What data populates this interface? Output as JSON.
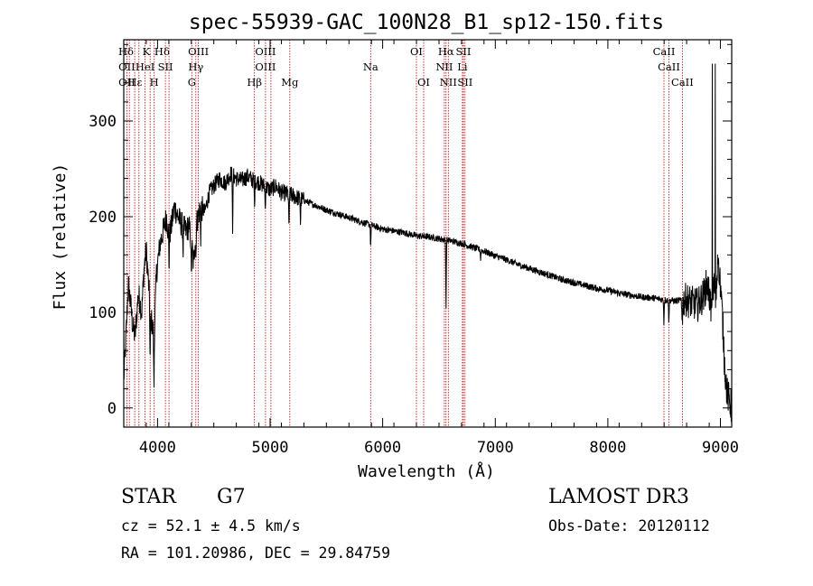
{
  "chart_data": {
    "type": "line",
    "title": "spec-55939-GAC_100N28_B1_sp12-150.fits",
    "xlabel": "Wavelength (Å)",
    "ylabel": "Flux (relative)",
    "xlim": [
      3700,
      9100
    ],
    "ylim": [
      -20,
      385
    ],
    "xticks": [
      4000,
      5000,
      6000,
      7000,
      8000,
      9000
    ],
    "yticks": [
      0,
      100,
      200,
      300
    ],
    "grid": false,
    "spectrum_anchors": [
      [
        3700,
        30
      ],
      [
        3720,
        75
      ],
      [
        3740,
        130
      ],
      [
        3760,
        110
      ],
      [
        3780,
        85
      ],
      [
        3800,
        75
      ],
      [
        3830,
        120
      ],
      [
        3860,
        100
      ],
      [
        3880,
        145
      ],
      [
        3900,
        165
      ],
      [
        3920,
        130
      ],
      [
        3940,
        95
      ],
      [
        3970,
        75
      ],
      [
        3990,
        140
      ],
      [
        4020,
        170
      ],
      [
        4050,
        185
      ],
      [
        4080,
        200
      ],
      [
        4100,
        178
      ],
      [
        4120,
        188
      ],
      [
        4150,
        210
      ],
      [
        4200,
        195
      ],
      [
        4250,
        185
      ],
      [
        4280,
        190
      ],
      [
        4300,
        175
      ],
      [
        4320,
        150
      ],
      [
        4340,
        190
      ],
      [
        4380,
        210
      ],
      [
        4420,
        205
      ],
      [
        4460,
        225
      ],
      [
        4500,
        232
      ],
      [
        4550,
        240
      ],
      [
        4600,
        235
      ],
      [
        4650,
        245
      ],
      [
        4700,
        240
      ],
      [
        4750,
        238
      ],
      [
        4800,
        242
      ],
      [
        4850,
        238
      ],
      [
        4900,
        236
      ],
      [
        4950,
        232
      ],
      [
        5000,
        228
      ],
      [
        5050,
        232
      ],
      [
        5100,
        225
      ],
      [
        5150,
        224
      ],
      [
        5200,
        222
      ],
      [
        5300,
        217
      ],
      [
        5400,
        212
      ],
      [
        5500,
        207
      ],
      [
        5600,
        203
      ],
      [
        5700,
        199
      ],
      [
        5800,
        195
      ],
      [
        5900,
        191
      ],
      [
        6000,
        187
      ],
      [
        6100,
        185
      ],
      [
        6200,
        183
      ],
      [
        6300,
        180
      ],
      [
        6400,
        179
      ],
      [
        6500,
        177
      ],
      [
        6600,
        175
      ],
      [
        6700,
        172
      ],
      [
        6800,
        168
      ],
      [
        6900,
        164
      ],
      [
        7000,
        159
      ],
      [
        7100,
        155
      ],
      [
        7200,
        150
      ],
      [
        7300,
        146
      ],
      [
        7400,
        142
      ],
      [
        7500,
        138
      ],
      [
        7600,
        134
      ],
      [
        7700,
        131
      ],
      [
        7800,
        128
      ],
      [
        7900,
        125
      ],
      [
        8000,
        123
      ],
      [
        8100,
        120
      ],
      [
        8200,
        118
      ],
      [
        8300,
        116
      ],
      [
        8400,
        115
      ],
      [
        8500,
        113
      ],
      [
        8600,
        112
      ],
      [
        8700,
        113
      ],
      [
        8750,
        110
      ],
      [
        8800,
        108
      ],
      [
        8850,
        118
      ],
      [
        8880,
        130
      ],
      [
        8900,
        120
      ],
      [
        8920,
        95
      ],
      [
        8940,
        135
      ],
      [
        8960,
        105
      ],
      [
        8980,
        160
      ],
      [
        9000,
        130
      ],
      [
        9020,
        90
      ],
      [
        9040,
        40
      ],
      [
        9060,
        15
      ],
      [
        9100,
        0
      ]
    ],
    "absorption_features": [
      [
        3934,
        60
      ],
      [
        3968,
        55
      ],
      [
        4102,
        30
      ],
      [
        4227,
        25
      ],
      [
        4300,
        40
      ],
      [
        4340,
        35
      ],
      [
        4384,
        30
      ],
      [
        4668,
        60
      ],
      [
        4861,
        30
      ],
      [
        4957,
        25
      ],
      [
        5167,
        40
      ],
      [
        5270,
        25
      ],
      [
        5893,
        25
      ],
      [
        6563,
        40
      ],
      [
        6563,
        30
      ],
      [
        6870,
        10
      ],
      [
        8498,
        25
      ],
      [
        8542,
        25
      ],
      [
        8662,
        25
      ]
    ],
    "lines": [
      {
        "label": "Hδ",
        "wavelength": 3720,
        "row": 1
      },
      {
        "label": "K",
        "wavelength": 3900,
        "row": 1
      },
      {
        "label": "Hδ",
        "wavelength": 4040,
        "row": 1
      },
      {
        "label": "OIII",
        "wavelength": 4363,
        "row": 1
      },
      {
        "label": "OIII",
        "wavelength": 4959,
        "row": 1
      },
      {
        "label": "OI",
        "wavelength": 6300,
        "row": 1
      },
      {
        "label": "Hα",
        "wavelength": 6563,
        "row": 1
      },
      {
        "label": "SII",
        "wavelength": 6717,
        "row": 1
      },
      {
        "label": "CaII",
        "wavelength": 8498,
        "row": 1
      },
      {
        "label": "OII",
        "wavelength": 3727,
        "row": 2
      },
      {
        "label": "HeI",
        "wavelength": 3889,
        "row": 2
      },
      {
        "label": "SII",
        "wavelength": 4070,
        "row": 2
      },
      {
        "label": "Hγ",
        "wavelength": 4340,
        "row": 2
      },
      {
        "label": "OIII",
        "wavelength": 4959,
        "row": 2
      },
      {
        "label": "Na",
        "wavelength": 5893,
        "row": 2
      },
      {
        "label": "NII",
        "wavelength": 6548,
        "row": 2
      },
      {
        "label": "Li",
        "wavelength": 6708,
        "row": 2
      },
      {
        "label": "CaII",
        "wavelength": 8542,
        "row": 2
      },
      {
        "label": "OII",
        "wavelength": 3727,
        "row": 3
      },
      {
        "label": "Hε",
        "wavelength": 3800,
        "row": 3
      },
      {
        "label": "H",
        "wavelength": 3970,
        "row": 3
      },
      {
        "label": "G",
        "wavelength": 4304,
        "row": 3
      },
      {
        "label": "Hβ",
        "wavelength": 4861,
        "row": 3
      },
      {
        "label": "Mg",
        "wavelength": 5175,
        "row": 3
      },
      {
        "label": "OI",
        "wavelength": 6364,
        "row": 3
      },
      {
        "label": "NII",
        "wavelength": 6583,
        "row": 3
      },
      {
        "label": "SII",
        "wavelength": 6731,
        "row": 3
      },
      {
        "label": "CaII",
        "wavelength": 8662,
        "row": 3
      }
    ],
    "line_markers": [
      3727,
      3750,
      3797,
      3835,
      3889,
      3934,
      3970,
      4070,
      4102,
      4304,
      4340,
      4363,
      4861,
      4959,
      5007,
      5175,
      5893,
      6300,
      6364,
      6548,
      6563,
      6583,
      6708,
      6717,
      6731,
      8498,
      8542,
      8662
    ]
  },
  "info": {
    "object_class": "STAR",
    "subclass": "G7",
    "survey": "LAMOST DR3",
    "redshift": "cz = 52.1 ± 4.5 km/s",
    "obs_date": "Obs-Date: 20120112",
    "coords": "RA = 101.20986, DEC =  29.84759"
  },
  "colors": {
    "spectrum": "#000000",
    "line_marker": "#c00000",
    "axis": "#000000",
    "background": "#ffffff"
  }
}
